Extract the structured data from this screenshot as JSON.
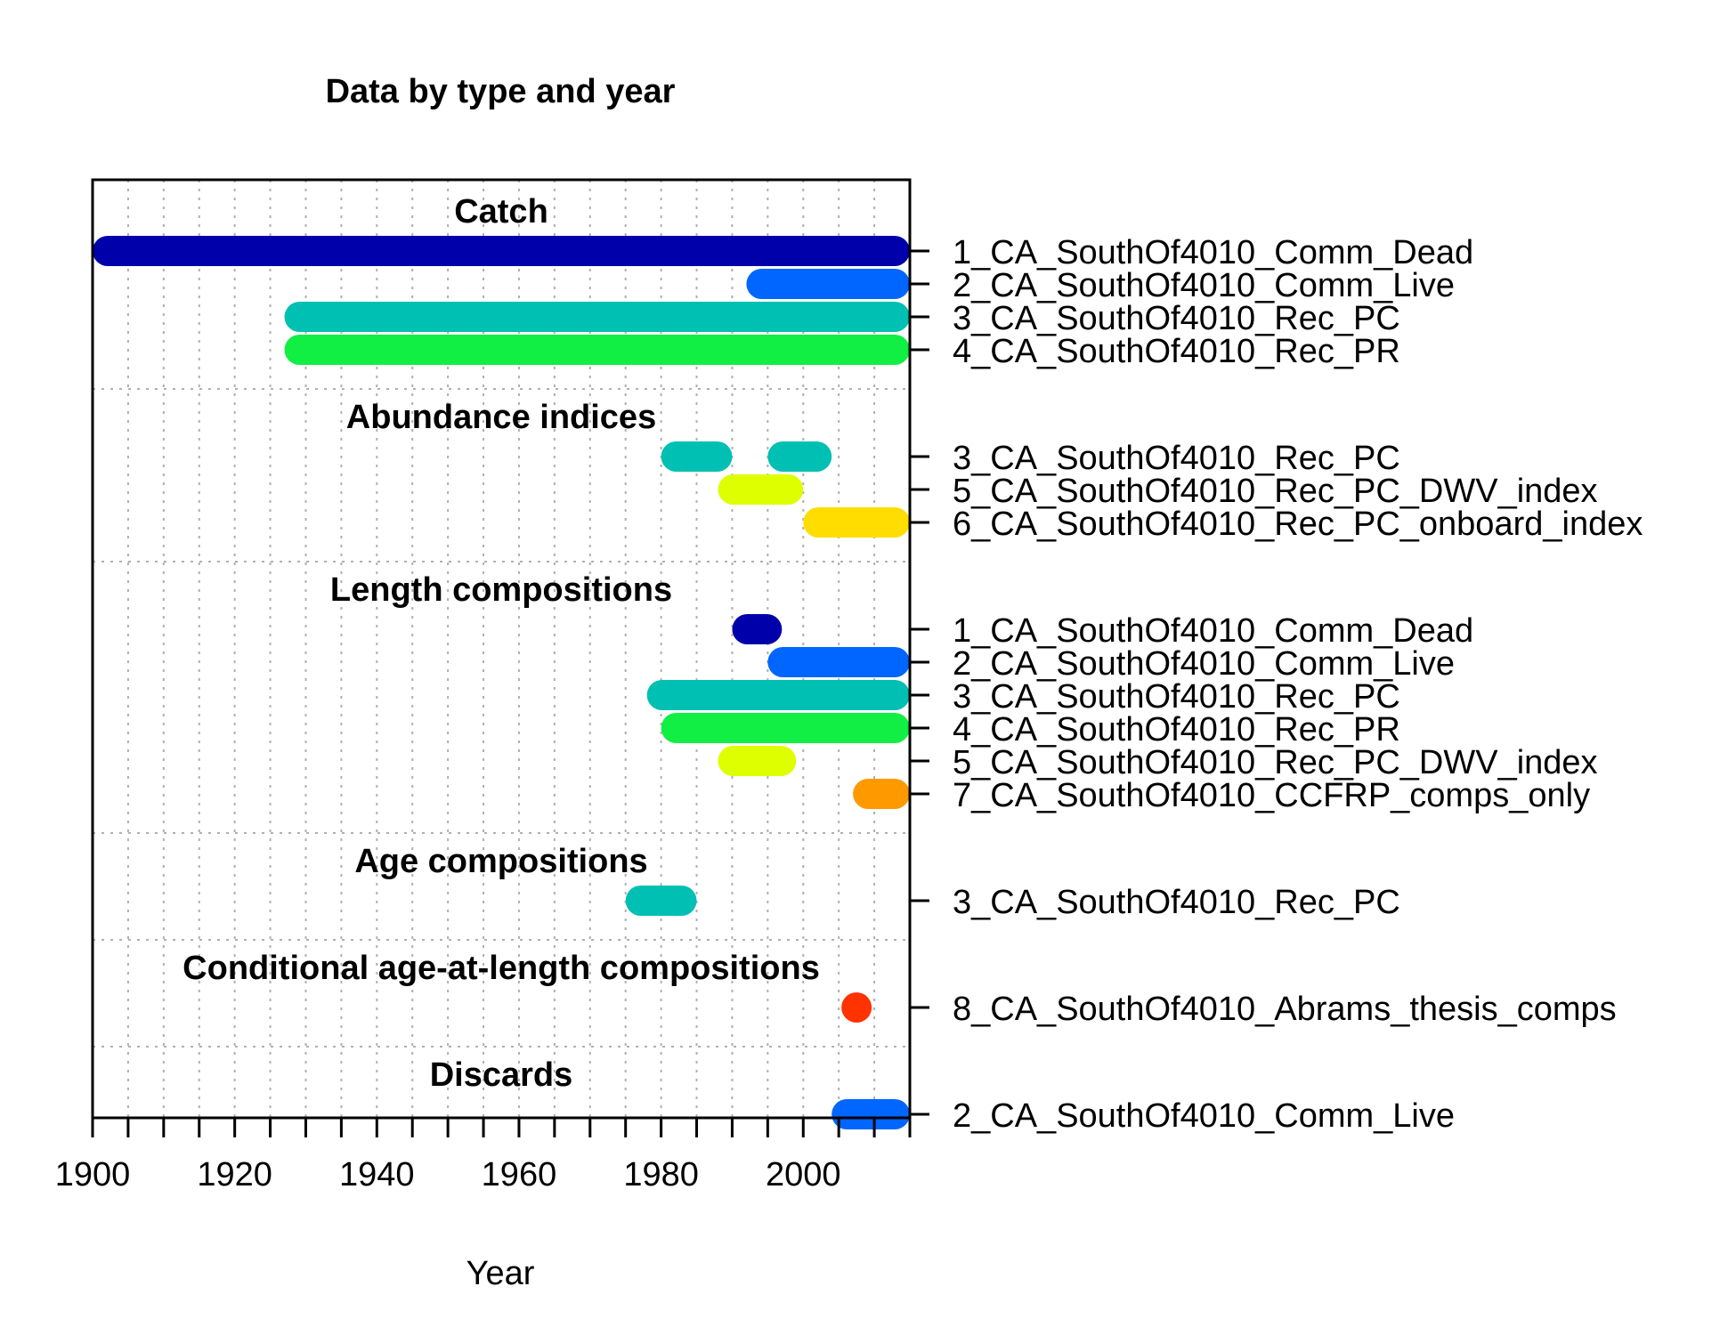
{
  "chart_data": {
    "type": "timeline",
    "title": "Data by type and year",
    "xlabel": "Year",
    "xlim": [
      1900,
      2015
    ],
    "x_ticks": [
      1900,
      1920,
      1940,
      1960,
      1980,
      2000
    ],
    "grid": true,
    "colors": {
      "1": "#0000AA",
      "2": "#0066FF",
      "3": "#00BFB3",
      "4": "#11EE44",
      "5": "#DDFF00",
      "6": "#FFDD00",
      "7": "#FF9900",
      "8": "#FF3300"
    },
    "sections": [
      {
        "name": "Catch",
        "rows": [
          {
            "fleet": 1,
            "label": "1_CA_SouthOf4010_Comm_Dead",
            "ranges": [
              [
                1900,
                2015
              ]
            ]
          },
          {
            "fleet": 2,
            "label": "2_CA_SouthOf4010_Comm_Live",
            "ranges": [
              [
                1992,
                2015
              ]
            ]
          },
          {
            "fleet": 3,
            "label": "3_CA_SouthOf4010_Rec_PC",
            "ranges": [
              [
                1927,
                2015
              ]
            ]
          },
          {
            "fleet": 4,
            "label": "4_CA_SouthOf4010_Rec_PR",
            "ranges": [
              [
                1927,
                2015
              ]
            ]
          }
        ]
      },
      {
        "name": "Abundance indices",
        "rows": [
          {
            "fleet": 3,
            "label": "3_CA_SouthOf4010_Rec_PC",
            "ranges": [
              [
                1980,
                1990
              ],
              [
                1995,
                2004
              ]
            ]
          },
          {
            "fleet": 5,
            "label": "5_CA_SouthOf4010_Rec_PC_DWV_index",
            "ranges": [
              [
                1988,
                2000
              ]
            ]
          },
          {
            "fleet": 6,
            "label": "6_CA_SouthOf4010_Rec_PC_onboard_index",
            "ranges": [
              [
                2000,
                2015
              ]
            ]
          }
        ]
      },
      {
        "name": "Length compositions",
        "rows": [
          {
            "fleet": 1,
            "label": "1_CA_SouthOf4010_Comm_Dead",
            "ranges": [
              [
                1990,
                1997
              ]
            ]
          },
          {
            "fleet": 2,
            "label": "2_CA_SouthOf4010_Comm_Live",
            "ranges": [
              [
                1995,
                2015
              ]
            ]
          },
          {
            "fleet": 3,
            "label": "3_CA_SouthOf4010_Rec_PC",
            "ranges": [
              [
                1978,
                2015
              ]
            ]
          },
          {
            "fleet": 4,
            "label": "4_CA_SouthOf4010_Rec_PR",
            "ranges": [
              [
                1980,
                2015
              ]
            ]
          },
          {
            "fleet": 5,
            "label": "5_CA_SouthOf4010_Rec_PC_DWV_index",
            "ranges": [
              [
                1988,
                1999
              ]
            ]
          },
          {
            "fleet": 7,
            "label": "7_CA_SouthOf4010_CCFRP_comps_only",
            "ranges": [
              [
                2007,
                2015
              ]
            ]
          }
        ]
      },
      {
        "name": "Age compositions",
        "rows": [
          {
            "fleet": 3,
            "label": "3_CA_SouthOf4010_Rec_PC",
            "ranges": [
              [
                1975,
                1985
              ]
            ]
          }
        ]
      },
      {
        "name": "Conditional age-at-length compositions",
        "rows": [
          {
            "fleet": 8,
            "label": "8_CA_SouthOf4010_Abrams_thesis_comps",
            "ranges": [
              [
                2007,
                2008
              ]
            ]
          }
        ]
      },
      {
        "name": "Discards",
        "rows": [
          {
            "fleet": 2,
            "label": "2_CA_SouthOf4010_Comm_Live",
            "ranges": [
              [
                2004,
                2015
              ]
            ]
          }
        ]
      }
    ]
  }
}
